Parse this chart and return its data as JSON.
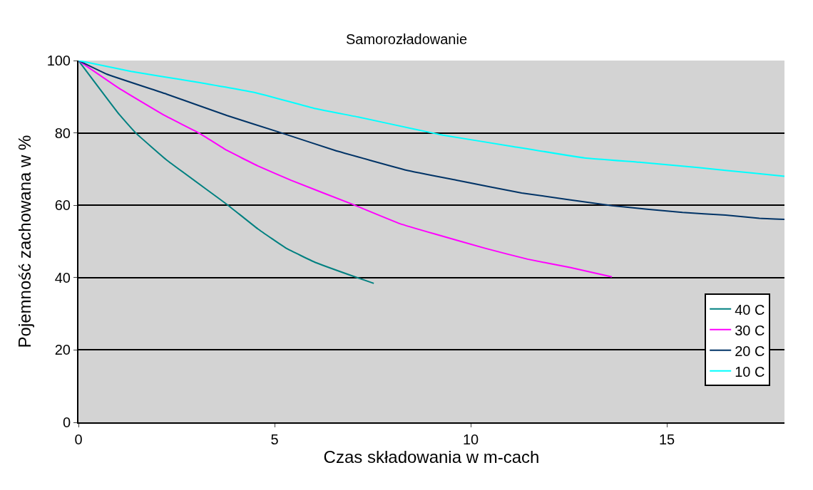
{
  "chart_data": {
    "type": "line",
    "title": "Samorozładowanie",
    "xlabel": "Czas składowania w m-cach",
    "ylabel": "Pojemność zachowana w %",
    "xlim": [
      0,
      18
    ],
    "xticks": [
      0,
      5,
      10,
      15
    ],
    "ylim": [
      0,
      100
    ],
    "yticks": [
      0,
      20,
      40,
      60,
      80,
      100
    ],
    "grid": "y",
    "legend": "bottom right",
    "marker": "none",
    "line_style": "solid",
    "series": [
      {
        "name": "40 C",
        "color": "#008080",
        "x": [
          0,
          1.04,
          1.46,
          2.25,
          3.79,
          4.57,
          5.3,
          6.04,
          6.95,
          7.53
        ],
        "values": [
          100,
          85.1,
          80,
          72.5,
          60.2,
          53.5,
          48.1,
          44.2,
          40.6,
          38.4
        ]
      },
      {
        "name": "30 C",
        "color": "#ff00ff",
        "x": [
          0,
          1.04,
          2.2,
          3.1,
          3.78,
          4.57,
          5.42,
          7.0,
          8.2,
          9.07,
          10.37,
          11.45,
          12.53,
          13.6
        ],
        "values": [
          100,
          92.3,
          84.8,
          79.8,
          75.2,
          70.9,
          66.9,
          60.2,
          54.9,
          52.1,
          48.1,
          45.1,
          42.8,
          40.2
        ]
      },
      {
        "name": "20 C",
        "color": "#003366",
        "x": [
          0,
          0.73,
          2.25,
          3.79,
          5.12,
          6.53,
          8.36,
          9.66,
          11.3,
          13.6,
          15.4,
          16.5,
          17.36,
          18
        ],
        "values": [
          100,
          96.2,
          90.7,
          84.8,
          80.2,
          75.2,
          69.7,
          66.9,
          63.4,
          59.9,
          58,
          57.3,
          56.4,
          56.1
        ]
      },
      {
        "name": "10 C",
        "color": "#00ffff",
        "x": [
          0,
          1.34,
          2.87,
          4.52,
          6.04,
          7.13,
          8.58,
          9.29,
          11.1,
          12.9,
          14.3,
          15.8,
          17.2,
          18
        ],
        "values": [
          100,
          97,
          94.3,
          91.1,
          86.7,
          84.4,
          81,
          79.4,
          76.2,
          73.1,
          71.9,
          70.4,
          68.9,
          68
        ]
      }
    ]
  }
}
